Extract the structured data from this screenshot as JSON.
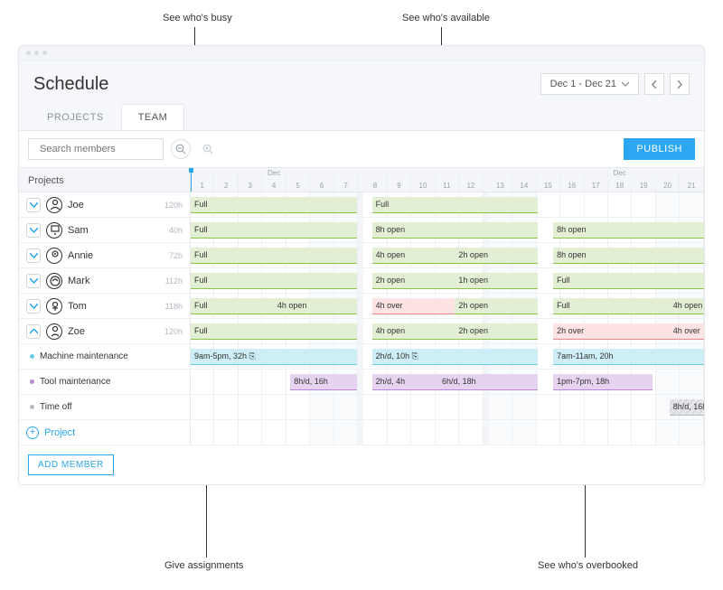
{
  "annotations": {
    "busy": "See who's busy",
    "available": "See who's available",
    "assignments": "Give assignments",
    "overbooked": "See who's overbooked"
  },
  "header": {
    "title": "Schedule",
    "range_label": "Dec 1 - Dec 21"
  },
  "tabs": {
    "projects": "PROJECTS",
    "team": "TEAM"
  },
  "toolbar": {
    "search_placeholder": "Search members",
    "publish": "PUBLISH"
  },
  "grid": {
    "head_label": "Projects",
    "month_label": "Dec",
    "days": [
      1,
      2,
      3,
      4,
      5,
      6,
      7,
      7,
      8,
      9,
      10,
      11,
      12,
      12,
      13,
      14,
      15,
      16,
      17,
      18,
      19,
      20,
      21
    ],
    "today": 1,
    "member_rows": [
      {
        "name": "Joe",
        "hours": "120h",
        "expanded": true,
        "blocks": [
          [
            {
              "t": "Full",
              "k": "full",
              "w": 5
            }
          ],
          [
            {
              "t": "Full",
              "k": "full",
              "w": 5
            }
          ],
          [
            {
              "t": "",
              "k": "gap",
              "w": 6
            }
          ]
        ]
      },
      {
        "name": "Sam",
        "hours": "40h",
        "expanded": true,
        "blocks": [
          [
            {
              "t": "Full",
              "k": "full",
              "w": 5
            }
          ],
          [
            {
              "t": "8h open",
              "k": "open",
              "w": 5
            }
          ],
          [
            {
              "t": "8h open",
              "k": "open",
              "w": 6
            }
          ]
        ]
      },
      {
        "name": "Annie",
        "hours": "72h",
        "expanded": true,
        "blocks": [
          [
            {
              "t": "Full",
              "k": "full",
              "w": 5
            }
          ],
          [
            {
              "t": "4h open",
              "k": "open",
              "w": 2.5
            },
            {
              "t": "2h open",
              "k": "open",
              "w": 2.5
            }
          ],
          [
            {
              "t": "8h open",
              "k": "open",
              "w": 6
            }
          ]
        ]
      },
      {
        "name": "Mark",
        "hours": "112h",
        "expanded": true,
        "blocks": [
          [
            {
              "t": "Full",
              "k": "full",
              "w": 5
            }
          ],
          [
            {
              "t": "2h open",
              "k": "open",
              "w": 2.5
            },
            {
              "t": "1h open",
              "k": "open",
              "w": 2.5
            }
          ],
          [
            {
              "t": "Full",
              "k": "full",
              "w": 6
            }
          ]
        ]
      },
      {
        "name": "Tom",
        "hours": "118h",
        "expanded": true,
        "blocks": [
          [
            {
              "t": "Full",
              "k": "full",
              "w": 2.5
            },
            {
              "t": "4h open",
              "k": "open",
              "w": 2.5
            }
          ],
          [
            {
              "t": "4h over",
              "k": "over",
              "w": 2.5
            },
            {
              "t": "2h open",
              "k": "open",
              "w": 2.5
            }
          ],
          [
            {
              "t": "Full",
              "k": "full",
              "w": 3.5
            },
            {
              "t": "4h open",
              "k": "open",
              "w": 2.5
            }
          ]
        ]
      },
      {
        "name": "Zoe",
        "hours": "120h",
        "expanded": false,
        "blocks": [
          [
            {
              "t": "Full",
              "k": "full",
              "w": 5
            }
          ],
          [
            {
              "t": "4h open",
              "k": "open",
              "w": 2.5
            },
            {
              "t": "2h open",
              "k": "open",
              "w": 2.5
            }
          ],
          [
            {
              "t": "2h over",
              "k": "over",
              "w": 3.5
            },
            {
              "t": "4h over",
              "k": "over",
              "w": 2.5
            }
          ]
        ]
      }
    ],
    "sub_rows": [
      {
        "name": "Machine maintenance",
        "dot": "#6bcbe3",
        "blocks": [
          [
            {
              "t": "9am-5pm, 32h ⎘",
              "k": "task1",
              "w": 5
            }
          ],
          [
            {
              "t": "2h/d, 10h ⎘",
              "k": "task1",
              "w": 5
            }
          ],
          [
            {
              "t": "7am-11am, 20h",
              "k": "task1",
              "w": 6
            }
          ]
        ]
      },
      {
        "name": "Tool maintenance",
        "dot": "#b98ad4",
        "blocks": [
          [
            {
              "t": "",
              "k": "gap",
              "w": 3
            },
            {
              "t": "8h/d, 16h",
              "k": "task2",
              "w": 2
            }
          ],
          [
            {
              "t": "2h/d, 4h",
              "k": "task2",
              "w": 2
            },
            {
              "t": "6h/d, 18h",
              "k": "task2",
              "w": 3
            }
          ],
          [
            {
              "t": "1pm-7pm, 18h",
              "k": "task2",
              "w": 3
            },
            {
              "t": "",
              "k": "gap",
              "w": 3
            }
          ]
        ]
      },
      {
        "name": "Time off",
        "dot": "#b8bdc4",
        "blocks": [
          [
            {
              "t": "",
              "k": "gap",
              "w": 5
            }
          ],
          [
            {
              "t": "",
              "k": "gap",
              "w": 5
            }
          ],
          [
            {
              "t": "",
              "k": "gap",
              "w": 3.5
            },
            {
              "t": "8h/d, 16h",
              "k": "task3",
              "w": 2.5
            }
          ]
        ]
      }
    ],
    "project_link": "Project",
    "add_member": "ADD MEMBER"
  },
  "colors": {
    "accent": "#2aa7f0",
    "full_bg": "#e2efd5",
    "full_border": "#8bc34a",
    "over_bg": "#fde3e3",
    "over_border": "#f08a8a",
    "t1_bg": "#cdeef6",
    "t1_border": "#6bcbe3",
    "t2_bg": "#e5d3f0",
    "t2_border": "#b98ad4",
    "t3_bg": "#e5e7ea",
    "t3_border": "#b8bdc4"
  }
}
